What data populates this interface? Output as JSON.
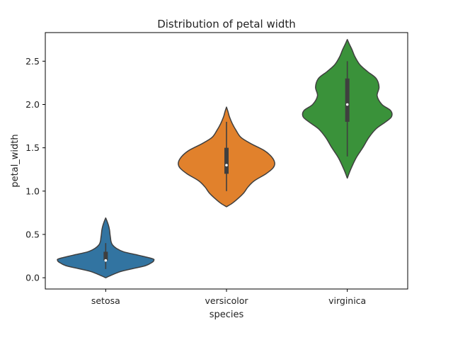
{
  "chart_data": {
    "type": "violin",
    "title": "Distribution of petal width",
    "xlabel": "species",
    "ylabel": "petal_width",
    "ylim": [
      -0.13,
      2.83
    ],
    "yticks": [
      "0.0",
      "0.5",
      "1.0",
      "1.5",
      "2.0",
      "2.5"
    ],
    "ytick_values": [
      0.0,
      0.5,
      1.0,
      1.5,
      2.0,
      2.5
    ],
    "grid": false,
    "categories": [
      "setosa",
      "versicolor",
      "virginica"
    ],
    "series": [
      {
        "category": "setosa",
        "color": "#3274a1",
        "median": 0.2,
        "q1": 0.2,
        "q3": 0.3,
        "whisker_low": 0.1,
        "whisker_high": 0.4,
        "density": [
          [
            0.0,
            0.0
          ],
          [
            0.03,
            0.12
          ],
          [
            0.07,
            0.3
          ],
          [
            0.1,
            0.52
          ],
          [
            0.14,
            0.83
          ],
          [
            0.18,
            0.97
          ],
          [
            0.2,
            1.0
          ],
          [
            0.22,
            0.97
          ],
          [
            0.26,
            0.68
          ],
          [
            0.3,
            0.37
          ],
          [
            0.34,
            0.22
          ],
          [
            0.38,
            0.14
          ],
          [
            0.42,
            0.11
          ],
          [
            0.46,
            0.1
          ],
          [
            0.5,
            0.09
          ],
          [
            0.55,
            0.08
          ],
          [
            0.6,
            0.06
          ],
          [
            0.65,
            0.03
          ],
          [
            0.69,
            0.0
          ]
        ]
      },
      {
        "category": "versicolor",
        "color": "#e1812c",
        "median": 1.3,
        "q1": 1.2,
        "q3": 1.5,
        "whisker_low": 1.0,
        "whisker_high": 1.8,
        "density": [
          [
            0.82,
            0.0
          ],
          [
            0.86,
            0.12
          ],
          [
            0.92,
            0.25
          ],
          [
            0.98,
            0.36
          ],
          [
            1.05,
            0.45
          ],
          [
            1.12,
            0.58
          ],
          [
            1.2,
            0.82
          ],
          [
            1.27,
            0.97
          ],
          [
            1.33,
            1.0
          ],
          [
            1.4,
            0.93
          ],
          [
            1.47,
            0.78
          ],
          [
            1.55,
            0.5
          ],
          [
            1.62,
            0.3
          ],
          [
            1.7,
            0.2
          ],
          [
            1.78,
            0.12
          ],
          [
            1.86,
            0.06
          ],
          [
            1.92,
            0.03
          ],
          [
            1.97,
            0.0
          ]
        ]
      },
      {
        "category": "virginica",
        "color": "#3a923a",
        "median": 2.0,
        "q1": 1.8,
        "q3": 2.3,
        "whisker_low": 1.4,
        "whisker_high": 2.5,
        "density": [
          [
            1.15,
            0.0
          ],
          [
            1.25,
            0.07
          ],
          [
            1.38,
            0.18
          ],
          [
            1.5,
            0.32
          ],
          [
            1.62,
            0.45
          ],
          [
            1.72,
            0.6
          ],
          [
            1.8,
            0.8
          ],
          [
            1.86,
            0.92
          ],
          [
            1.93,
            0.9
          ],
          [
            2.0,
            0.72
          ],
          [
            2.1,
            0.62
          ],
          [
            2.2,
            0.66
          ],
          [
            2.3,
            0.6
          ],
          [
            2.38,
            0.42
          ],
          [
            2.46,
            0.26
          ],
          [
            2.55,
            0.16
          ],
          [
            2.63,
            0.1
          ],
          [
            2.7,
            0.04
          ],
          [
            2.75,
            0.0
          ]
        ]
      }
    ]
  }
}
